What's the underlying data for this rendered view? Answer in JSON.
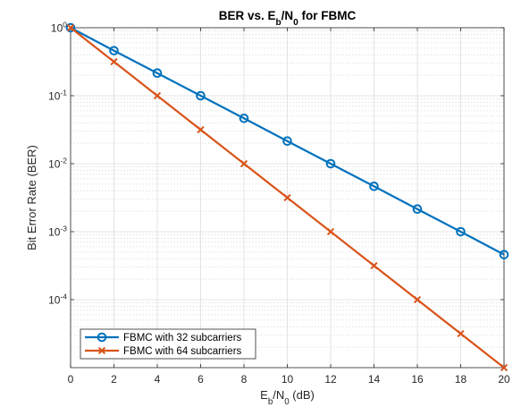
{
  "chart_data": {
    "type": "line",
    "title": {
      "parts": [
        {
          "text": "BER  vs.  E"
        },
        {
          "text": "b",
          "sub": true
        },
        {
          "text": "/N"
        },
        {
          "text": "0",
          "sub": true
        },
        {
          "text": "  for  FBMC"
        }
      ]
    },
    "xlabel": {
      "parts": [
        {
          "text": "E"
        },
        {
          "text": "b",
          "sub": true
        },
        {
          "text": "/N"
        },
        {
          "text": "0",
          "sub": true
        },
        {
          "text": "  (dB)"
        }
      ]
    },
    "ylabel": "Bit Error Rate (BER)",
    "xlim": [
      0,
      20
    ],
    "ylim": [
      1e-05,
      1
    ],
    "yscale": "log",
    "xticks": [
      0,
      2,
      4,
      6,
      8,
      10,
      12,
      14,
      16,
      18,
      20
    ],
    "yticks": [
      {
        "value": 1.0,
        "base": "10",
        "exp": "0"
      },
      {
        "value": 0.1,
        "base": "10",
        "exp": "-1"
      },
      {
        "value": 0.01,
        "base": "10",
        "exp": "-2"
      },
      {
        "value": 0.001,
        "base": "10",
        "exp": "-3"
      },
      {
        "value": 0.0001,
        "base": "10",
        "exp": "-4"
      }
    ],
    "grid": true,
    "minor_grid": true,
    "legend_position": "bottom-left",
    "x": [
      0,
      2,
      4,
      6,
      8,
      10,
      12,
      14,
      16,
      18,
      20
    ],
    "series": [
      {
        "name": "FBMC with 32 subcarriers",
        "color": "#0072BD",
        "marker": "circle",
        "values": [
          1.0,
          0.46,
          0.215,
          0.1,
          0.0465,
          0.0215,
          0.01,
          0.00465,
          0.00215,
          0.001,
          0.00046
        ]
      },
      {
        "name": "FBMC with 64 subcarriers",
        "color": "#D95319",
        "marker": "x",
        "values": [
          1.0,
          0.316,
          0.1,
          0.0316,
          0.01,
          0.00316,
          0.001,
          0.000316,
          0.0001,
          3.16e-05,
          1e-05
        ]
      }
    ]
  }
}
